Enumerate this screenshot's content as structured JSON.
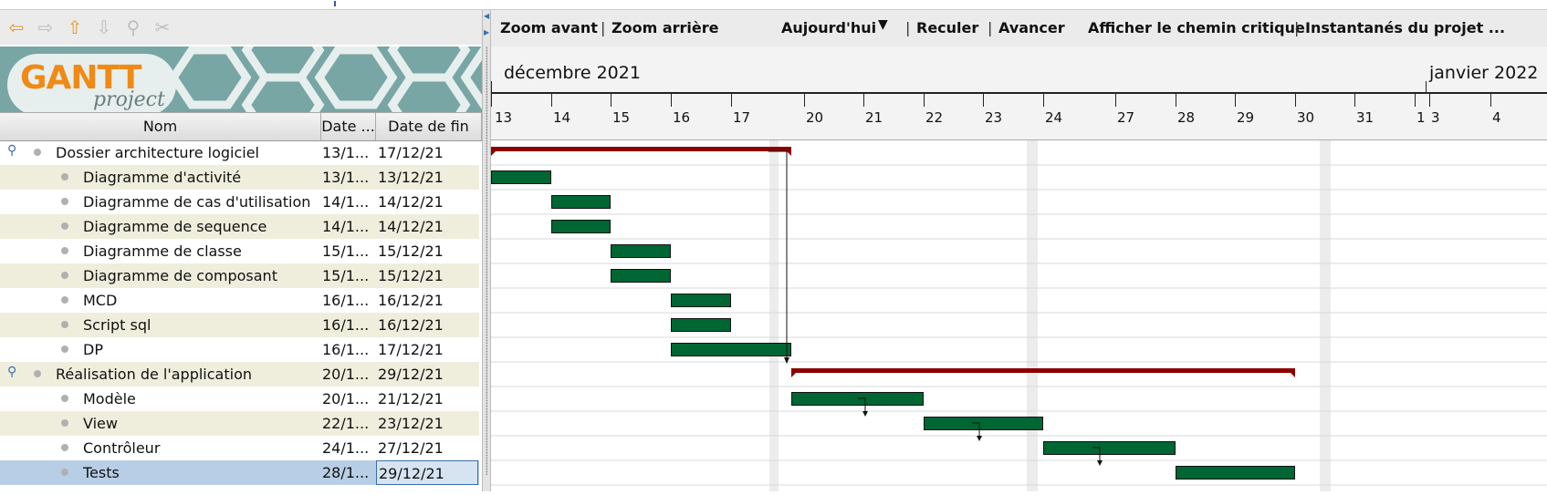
{
  "nav": {
    "icons": [
      {
        "name": "back-arrow-icon",
        "glyph": "⇦",
        "color": "#e89a2a"
      },
      {
        "name": "forward-arrow-icon",
        "glyph": "⇨",
        "color": "#bdbdbd"
      },
      {
        "name": "up-arrow-icon",
        "glyph": "⇧",
        "color": "#e89a2a"
      },
      {
        "name": "down-arrow-icon",
        "glyph": "⇩",
        "color": "#bdbdbd"
      },
      {
        "name": "link-icon",
        "glyph": "⚲",
        "color": "#bdbdbd"
      },
      {
        "name": "unlink-icon",
        "glyph": "✂",
        "color": "#bdbdbd"
      }
    ]
  },
  "logo": {
    "brand": "GANTT",
    "sub": "project"
  },
  "table": {
    "headers": {
      "name": "Nom",
      "start": "Date ...",
      "end": "Date de fin"
    },
    "rows": [
      {
        "name": "Dossier architecture logiciel",
        "start": "13/1...",
        "end": "17/12/21",
        "group": true
      },
      {
        "name": "Diagramme d'activité",
        "start": "13/1...",
        "end": "13/12/21",
        "group": false
      },
      {
        "name": "Diagramme de cas d'utilisation",
        "start": "14/1...",
        "end": "14/12/21",
        "group": false
      },
      {
        "name": "Diagramme de sequence",
        "start": "14/1...",
        "end": "14/12/21",
        "group": false
      },
      {
        "name": "Diagramme de classe",
        "start": "15/1...",
        "end": "15/12/21",
        "group": false
      },
      {
        "name": "Diagramme de composant",
        "start": "15/1...",
        "end": "15/12/21",
        "group": false
      },
      {
        "name": "MCD",
        "start": "16/1...",
        "end": "16/12/21",
        "group": false
      },
      {
        "name": "Script sql",
        "start": "16/1...",
        "end": "16/12/21",
        "group": false
      },
      {
        "name": "DP",
        "start": "16/1...",
        "end": "17/12/21",
        "group": false
      },
      {
        "name": "Réalisation de l'application",
        "start": "20/1...",
        "end": "29/12/21",
        "group": true
      },
      {
        "name": "Modèle",
        "start": "20/1...",
        "end": "21/12/21",
        "group": false
      },
      {
        "name": "View",
        "start": "22/1...",
        "end": "23/12/21",
        "group": false
      },
      {
        "name": "Contrôleur",
        "start": "24/1...",
        "end": "27/12/21",
        "group": false
      },
      {
        "name": "Tests",
        "start": "28/1...",
        "end": "29/12/21",
        "group": false,
        "selected": true
      }
    ]
  },
  "toolbar": {
    "zoom_in": "Zoom avant",
    "zoom_out": "Zoom arrière",
    "today": "Aujourd'hui",
    "back": "Reculer",
    "forward": "Avancer",
    "critical_path": "Afficher le chemin critique",
    "snapshots": "Instantanés du projet ..."
  },
  "timeline": {
    "months": [
      "décembre 2021",
      "janvier 2022"
    ],
    "days": [
      "13",
      "14",
      "15",
      "16",
      "17",
      "20",
      "21",
      "22",
      "23",
      "24",
      "27",
      "28",
      "29",
      "30",
      "31",
      "1",
      "3",
      "4"
    ]
  },
  "colors": {
    "task": "#006633",
    "summary": "#8b0000",
    "weekend": "#ececec",
    "grid": "#d8d8d8"
  }
}
